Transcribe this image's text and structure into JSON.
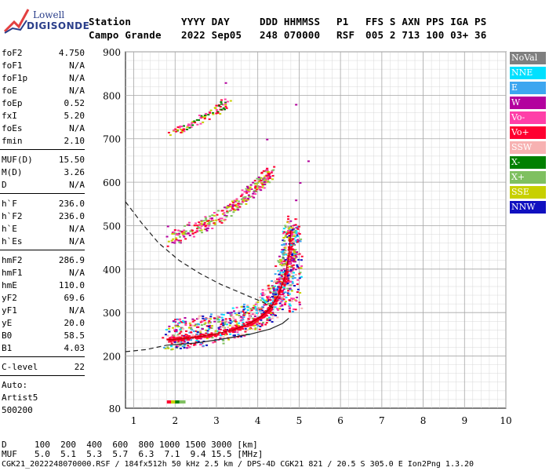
{
  "logo": {
    "line1": "Lowell",
    "line2": "DIGISONDE"
  },
  "header": {
    "row1": [
      {
        "key": "station_label",
        "text": "Station"
      },
      {
        "key": "date_label",
        "text": "YYYY DAY"
      },
      {
        "key": "doy_label",
        "text": "DDD HHMMSS"
      },
      {
        "key": "p1_label",
        "text": "P1"
      },
      {
        "key": "ffs_label",
        "text": "FFS S AXN PPS IGA PS"
      }
    ],
    "row2": [
      {
        "key": "station_value",
        "text": "Campo Grande"
      },
      {
        "key": "date_value",
        "text": "2022 Sep05"
      },
      {
        "key": "doy_value",
        "text": "248 070000"
      },
      {
        "key": "p1_value",
        "text": "RSF"
      },
      {
        "key": "ffs_value",
        "text": "005 2 713 100 03+ 36"
      }
    ]
  },
  "parameters": {
    "group1": [
      {
        "name": "foF2",
        "value": "4.750"
      },
      {
        "name": "foF1",
        "value": "N/A"
      },
      {
        "name": "foF1p",
        "value": "N/A"
      },
      {
        "name": "foE",
        "value": "N/A"
      },
      {
        "name": "foEp",
        "value": "0.52"
      },
      {
        "name": "fxI",
        "value": "5.20"
      },
      {
        "name": "foEs",
        "value": "N/A"
      },
      {
        "name": "fmin",
        "value": "2.10"
      }
    ],
    "group2": [
      {
        "name": "MUF(D)",
        "value": "15.50"
      },
      {
        "name": "M(D)",
        "value": "3.26"
      },
      {
        "name": "D",
        "value": "N/A"
      }
    ],
    "group3": [
      {
        "name": "h`F",
        "value": "236.0"
      },
      {
        "name": "h`F2",
        "value": "236.0"
      },
      {
        "name": "h`E",
        "value": "N/A"
      },
      {
        "name": "h`Es",
        "value": "N/A"
      }
    ],
    "group4": [
      {
        "name": "hmF2",
        "value": "286.9"
      },
      {
        "name": "hmF1",
        "value": "N/A"
      },
      {
        "name": "hmE",
        "value": "110.0"
      },
      {
        "name": "yF2",
        "value": "69.6"
      },
      {
        "name": "yF1",
        "value": "N/A"
      },
      {
        "name": "yE",
        "value": "20.0"
      },
      {
        "name": "B0",
        "value": "58.5"
      },
      {
        "name": "B1",
        "value": "4.03"
      }
    ],
    "group5": [
      {
        "name": "C-level",
        "value": "22"
      }
    ]
  },
  "autoscaling": {
    "line1": "Auto:",
    "line2": "Artist5",
    "line3": "500200"
  },
  "legend": [
    {
      "label": "NoVal",
      "color": "#7f7f7f"
    },
    {
      "label": "NNE",
      "color": "#00e0ff"
    },
    {
      "label": "E",
      "color": "#3da6f0"
    },
    {
      "label": "W",
      "color": "#b3009e"
    },
    {
      "label": "Vo-",
      "color": "#ff3fa8"
    },
    {
      "label": "Vo+",
      "color": "#ff0030"
    },
    {
      "label": "SSW",
      "color": "#f7b2b2"
    },
    {
      "label": "X-",
      "color": "#008000"
    },
    {
      "label": "X+",
      "color": "#7fc060"
    },
    {
      "label": "SSE",
      "color": "#c8d000"
    },
    {
      "label": "NNW",
      "color": "#1010c0"
    }
  ],
  "bottom": {
    "row_d": {
      "label": "D",
      "values": "100  200  400  600  800 1000 1500 3000 [km]"
    },
    "row_muf": {
      "label": "MUF",
      "values": "5.0  5.1  5.3  5.7  6.3  7.1  9.4 15.5 [MHz]"
    },
    "footer": "CGK21_2022248070000.RSF / 184fx512h 50 kHz 2.5 km / DPS-4D CGK21 821 / 20.5 S 305.0 E Ion2Png 1.3.20"
  },
  "chart_data": {
    "type": "scatter",
    "xlim": [
      0.8,
      10
    ],
    "ylim": [
      80,
      900
    ],
    "x_ticks": [
      "1",
      "2",
      "3",
      "4",
      "5",
      "6",
      "7",
      "8",
      "9",
      "10"
    ],
    "y_ticks": [
      "200",
      "300",
      "400",
      "500",
      "600",
      "700",
      "800",
      "900"
    ],
    "bottom_y_label": "80",
    "grid": true,
    "profile_curve_solid": [
      [
        1.8,
        225
      ],
      [
        2.5,
        230
      ],
      [
        3.2,
        240
      ],
      [
        3.8,
        250
      ],
      [
        4.3,
        262
      ],
      [
        4.6,
        275
      ],
      [
        4.75,
        287
      ]
    ],
    "profile_curve_dashed_lower": [
      [
        0.8,
        210
      ],
      [
        1.3,
        215
      ],
      [
        1.8,
        225
      ]
    ],
    "dashed_curve_upper": [
      [
        0.8,
        555
      ],
      [
        1.2,
        505
      ],
      [
        1.6,
        460
      ],
      [
        2.1,
        420
      ],
      [
        2.6,
        390
      ],
      [
        3.1,
        365
      ],
      [
        3.6,
        345
      ],
      [
        4.1,
        325
      ],
      [
        4.4,
        310
      ]
    ],
    "trace_lower": [
      [
        1.8,
        237
      ],
      [
        2.2,
        240
      ],
      [
        2.6,
        245
      ],
      [
        3.0,
        251
      ],
      [
        3.4,
        260
      ],
      [
        3.8,
        275
      ],
      [
        4.1,
        292
      ],
      [
        4.3,
        310
      ],
      [
        4.5,
        340
      ],
      [
        4.65,
        380
      ],
      [
        4.75,
        430
      ],
      [
        4.8,
        490
      ]
    ],
    "trace_2hop": [
      [
        1.8,
        462
      ],
      [
        2.2,
        478
      ],
      [
        2.6,
        495
      ],
      [
        3.0,
        515
      ],
      [
        3.4,
        540
      ],
      [
        3.8,
        575
      ],
      [
        4.1,
        600
      ],
      [
        4.3,
        625
      ]
    ],
    "trace_3hop": [
      [
        1.9,
        715
      ],
      [
        2.3,
        728
      ],
      [
        2.7,
        748
      ],
      [
        3.0,
        765
      ],
      [
        3.3,
        790
      ]
    ],
    "extra_points": [
      [
        1.8,
        500
      ],
      [
        4.9,
        560
      ],
      [
        5.0,
        600
      ],
      [
        5.2,
        650
      ],
      [
        4.9,
        780
      ],
      [
        3.2,
        830
      ],
      [
        4.2,
        700
      ]
    ]
  }
}
